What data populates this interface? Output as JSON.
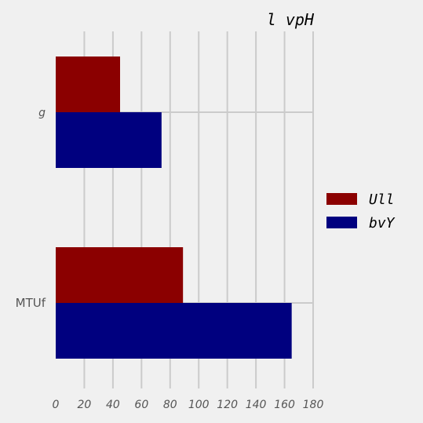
{
  "chart_data": {
    "type": "bar",
    "orientation": "horizontal",
    "title": "l vpH",
    "categories": [
      "g",
      "MTUf"
    ],
    "series": [
      {
        "name": "Ull",
        "color": "#8b0000",
        "values": [
          45,
          89
        ]
      },
      {
        "name": "bvY",
        "color": "#00007f",
        "values": [
          74,
          165
        ]
      }
    ],
    "xlim": [
      0,
      180
    ],
    "xticks": [
      "0",
      "20",
      "40",
      "60",
      "80",
      "100",
      "120",
      "140",
      "160",
      "180"
    ],
    "grid": true,
    "legend_position": "right"
  }
}
